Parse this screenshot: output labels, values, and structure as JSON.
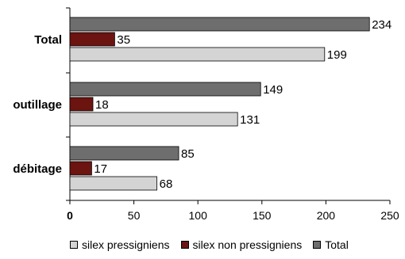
{
  "chart_data": {
    "type": "bar",
    "orientation": "horizontal",
    "categories": [
      "Total",
      "outillage",
      "débitage"
    ],
    "series": [
      {
        "name": "Total",
        "values": [
          234,
          149,
          85
        ],
        "color": "#6e6e6e"
      },
      {
        "name": "silex non pressigniens",
        "values": [
          35,
          18,
          17
        ],
        "color": "#6b1410"
      },
      {
        "name": "silex pressigniens",
        "values": [
          199,
          131,
          68
        ],
        "color": "#d4d4d4"
      }
    ],
    "xlim": [
      0,
      250
    ],
    "xticks": [
      0,
      50,
      100,
      150,
      200,
      250
    ],
    "grid": false,
    "data_labels": true,
    "legend": {
      "placement": "bottom",
      "order": [
        "silex pressigniens",
        "silex non pressigniens",
        "Total"
      ]
    }
  }
}
